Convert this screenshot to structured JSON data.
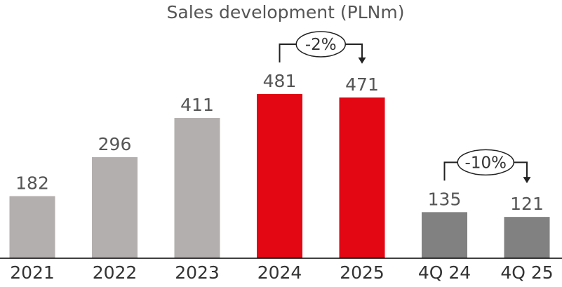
{
  "chart_data": {
    "type": "bar",
    "title": "Sales development (PLNm)",
    "categories": [
      "2021",
      "2022",
      "2023",
      "2024",
      "2025",
      "4Q 24",
      "4Q 25"
    ],
    "values": [
      182,
      296,
      411,
      481,
      471,
      135,
      121
    ],
    "value_labels": [
      "182",
      "296",
      "411",
      "481",
      "471",
      "135",
      "121"
    ],
    "bar_colors": [
      "#b3afae",
      "#b3afae",
      "#b3afae",
      "#e30613",
      "#e30613",
      "#818181",
      "#818181"
    ],
    "xlabel": "",
    "ylabel": "",
    "ylim": [
      0,
      481
    ],
    "grid": false,
    "legend": "none",
    "annotations": [
      {
        "text": "-2%",
        "from": "2024",
        "to": "2025"
      },
      {
        "text": "-10%",
        "from": "4Q 24",
        "to": "4Q 25"
      }
    ]
  }
}
